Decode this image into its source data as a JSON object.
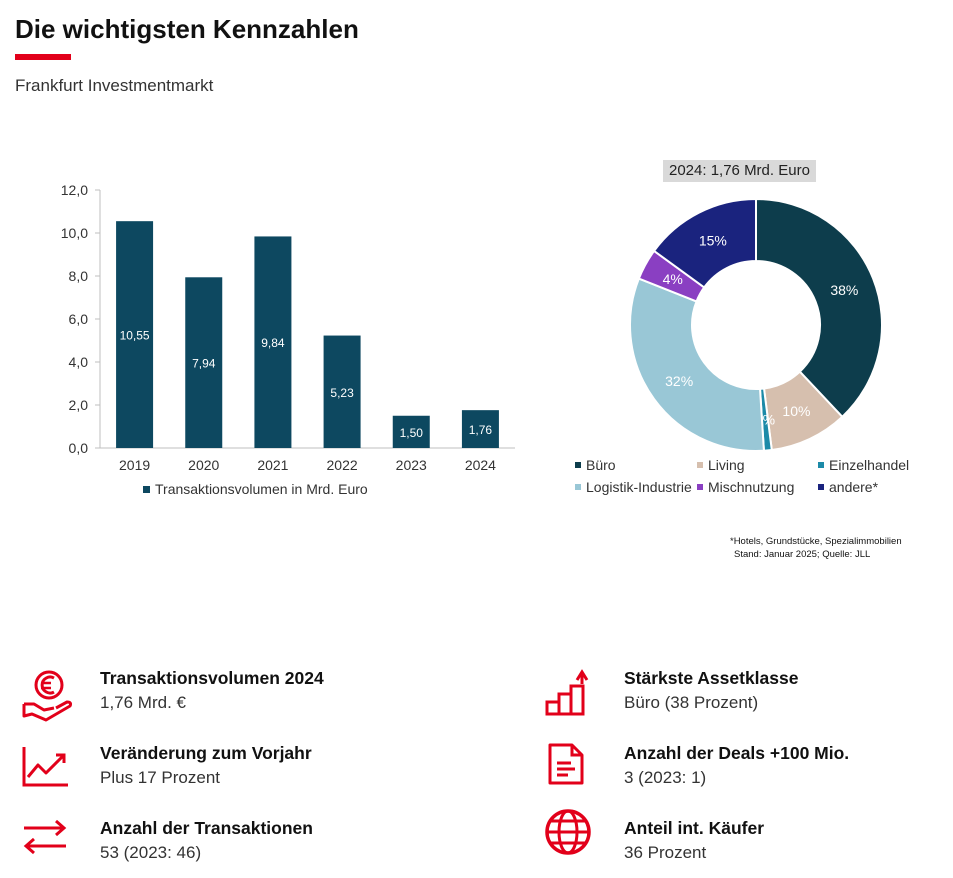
{
  "header": {
    "title": "Die wichtigsten Kennzahlen",
    "subtitle": "Frankfurt Investmentmarkt"
  },
  "colors": {
    "accent": "#e2001a",
    "bar": "#0d4860"
  },
  "chart_data": [
    {
      "type": "bar",
      "categories": [
        "2019",
        "2020",
        "2021",
        "2022",
        "2023",
        "2024"
      ],
      "values": [
        10.55,
        7.94,
        9.84,
        5.23,
        1.5,
        1.76
      ],
      "value_labels": [
        "10,55",
        "7,94",
        "9,84",
        "5,23",
        "1,50",
        "1,76"
      ],
      "ylim": [
        0,
        12
      ],
      "yticks": [
        0,
        2,
        4,
        6,
        8,
        10,
        12
      ],
      "ytick_labels": [
        "0,0",
        "2,0",
        "4,0",
        "6,0",
        "8,0",
        "10,0",
        "12,0"
      ],
      "series": [
        {
          "name": "Transaktionsvolumen in Mrd. Euro",
          "color": "#0d4860"
        }
      ],
      "legend_position": "bottom",
      "grid": false
    },
    {
      "type": "pie",
      "title": "2024: 1,76 Mrd. Euro",
      "donut": true,
      "slices": [
        {
          "name": "Büro",
          "value": 38,
          "label": "38%",
          "color": "#0d3d4c"
        },
        {
          "name": "Living",
          "value": 10,
          "label": "10%",
          "color": "#d6bfae"
        },
        {
          "name": "Einzelhandel",
          "value": 1,
          "label": "1%",
          "color": "#1c8aa8"
        },
        {
          "name": "Logistik-Industrie",
          "value": 32,
          "label": "32%",
          "color": "#99c7d6"
        },
        {
          "name": "Mischnutzung",
          "value": 4,
          "label": "4%",
          "color": "#8a3fc2"
        },
        {
          "name": "andere*",
          "value": 15,
          "label": "15%",
          "color": "#1a237e"
        }
      ],
      "legend_position": "bottom"
    }
  ],
  "footnote": {
    "line1": "*Hotels, Grundstücke, Spezialimmobilien",
    "line2": "Stand: Januar 2025; Quelle: JLL"
  },
  "kpis": [
    {
      "icon": "euro-hand-icon",
      "label": "Transaktionsvolumen 2024",
      "value": "1,76 Mrd. €"
    },
    {
      "icon": "trend-chart-icon",
      "label": "Veränderung zum Vorjahr",
      "value": "Plus 17 Prozent"
    },
    {
      "icon": "exchange-arrows-icon",
      "label": "Anzahl der Transaktionen",
      "value": "53 (2023: 46)"
    },
    {
      "icon": "bar-growth-icon",
      "label": "Stärkste Assetklasse",
      "value": "Büro (38 Prozent)"
    },
    {
      "icon": "document-icon",
      "label": "Anzahl der Deals +100 Mio.",
      "value": "3 (2023: 1)"
    },
    {
      "icon": "globe-icon",
      "label": "Anteil int. Käufer",
      "value": "36 Prozent"
    }
  ]
}
